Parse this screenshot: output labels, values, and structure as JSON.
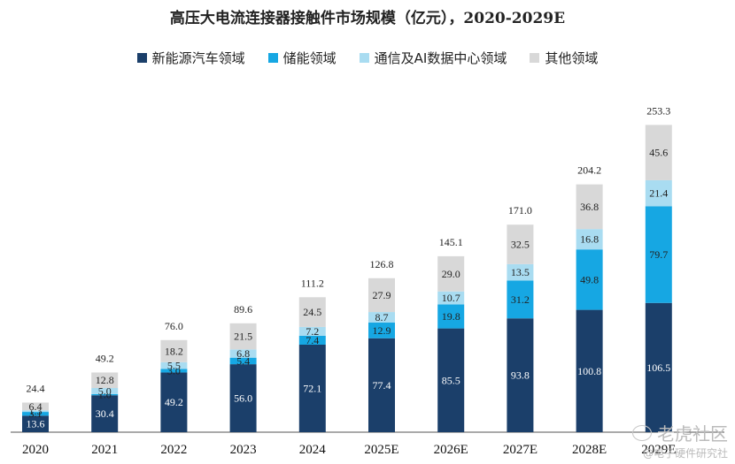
{
  "chart_data": {
    "type": "bar",
    "stacked": true,
    "title": "高压大电流连接器接触件市场规模（亿元），2020-2029E",
    "categories": [
      "2020",
      "2021",
      "2022",
      "2023",
      "2024",
      "2025E",
      "2026E",
      "2027E",
      "2028E",
      "2029E"
    ],
    "series": [
      {
        "name": "新能源汽车领域",
        "color": "#1b3f6a",
        "values": [
          13.6,
          30.4,
          49.2,
          56.0,
          72.1,
          77.4,
          85.5,
          93.8,
          100.8,
          106.5
        ]
      },
      {
        "name": "储能领域",
        "color": "#16a7e3",
        "values": [
          3.1,
          1.0,
          3.0,
          5.4,
          7.4,
          12.9,
          19.8,
          31.2,
          49.8,
          79.7
        ]
      },
      {
        "name": "通信及AI数据中心领域",
        "color": "#a9dcf1",
        "values": [
          1.3,
          5.0,
          5.5,
          6.8,
          7.2,
          8.7,
          10.7,
          13.5,
          16.8,
          21.4
        ]
      },
      {
        "name": "其他领域",
        "color": "#d8d8d8",
        "values": [
          6.4,
          12.8,
          18.2,
          21.5,
          24.5,
          27.9,
          29.0,
          32.5,
          36.8,
          45.6
        ]
      }
    ],
    "series_labels": [
      [
        "13.6",
        "30.4",
        "49.2",
        "56.0",
        "72.1",
        "77.4",
        "85.5",
        "93.8",
        "100.8",
        "106.5"
      ],
      [
        "3.1",
        "1.0",
        "3.0",
        "5.4",
        "7.4",
        "12.9",
        "19.8",
        "31.2",
        "49.8",
        "79.7"
      ],
      [
        "1.3",
        "5.0",
        "5.5",
        "6.8",
        "7.2",
        "8.7",
        "10.7",
        "13.5",
        "16.8",
        "21.4"
      ],
      [
        "6.4",
        "12.8",
        "18.2",
        "21.5",
        "24.5",
        "27.9",
        "29.0",
        "32.5",
        "36.8",
        "45.6"
      ]
    ],
    "totals": [
      24.4,
      49.2,
      76.0,
      89.6,
      111.2,
      126.8,
      145.1,
      171.0,
      204.2,
      253.3
    ],
    "total_labels": [
      "24.4",
      "49.2",
      "76.0",
      "89.6",
      "111.2",
      "126.8",
      "145.1",
      "171.0",
      "204.2",
      "253.3"
    ],
    "ylim": [
      0,
      260
    ],
    "legend_position": "top",
    "xlabel": "",
    "ylabel": ""
  },
  "watermark": {
    "line1": "老虎社区",
    "line2": "@电子硬件研究社"
  }
}
